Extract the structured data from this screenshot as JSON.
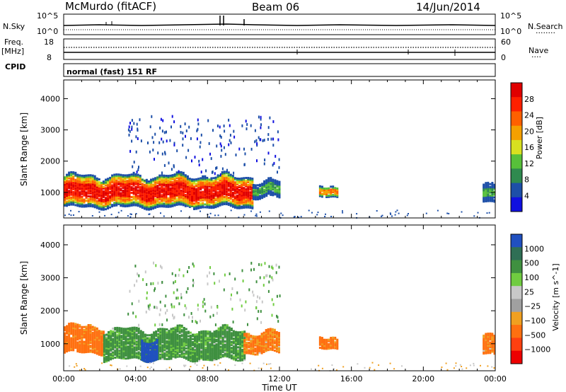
{
  "header": {
    "station": "McMurdo (fitACF)",
    "beam": "Beam 06",
    "date": "14/Jun/2014"
  },
  "noise_panel": {
    "left_label": "N.Sky",
    "right_label": "N.Search",
    "right_key": "........",
    "left_ticks": [
      "10^5",
      "10^0"
    ],
    "right_ticks": [
      "10^5",
      "10^0"
    ]
  },
  "freq_panel": {
    "left_label_1": "Freq.",
    "left_label_2": "[MHz]",
    "left_ticks": [
      "18",
      "8"
    ],
    "right_label": "Nave",
    "right_key": "....",
    "right_ticks": [
      "60",
      "0"
    ]
  },
  "cpid": {
    "label": "CPID",
    "mode": "normal (fast) 151 RF"
  },
  "colors": {
    "power": [
      "#1010e0",
      "#1d4fa8",
      "#2f8a4f",
      "#57c03a",
      "#d8e020",
      "#f5a000",
      "#ff6000",
      "#ff2000",
      "#e00000"
    ],
    "velocity": [
      "#2050c0",
      "#2f6f55",
      "#3f9040",
      "#70cc40",
      "#c8c8c8",
      "#a0a0a0",
      "#f0a020",
      "#ff7010",
      "#ff4010",
      "#ee0000"
    ]
  },
  "chart_data": [
    {
      "type": "heatmap",
      "title": "Power",
      "xlabel": "",
      "ylabel": "Slant Range [km]",
      "x_ticks": [
        "00:00",
        "04:00",
        "08:00",
        "12:00",
        "16:00",
        "20:00",
        "00:00"
      ],
      "y_ticks": [
        "1000",
        "2000",
        "3000",
        "4000"
      ],
      "ylim": [
        180,
        4600
      ],
      "colorbar": {
        "label": "Power [dB]",
        "ticks": [
          "4",
          "8",
          "12",
          "16",
          "20",
          "24",
          "28"
        ],
        "range": [
          0,
          32
        ]
      },
      "regions": [
        {
          "t0": 0.0,
          "t1": 10.5,
          "r_low": 500,
          "r_high": 1500,
          "level": "strong"
        },
        {
          "t0": 10.5,
          "t1": 12.0,
          "r_low": 800,
          "r_high": 1300,
          "level": "weak"
        },
        {
          "t0": 14.2,
          "t1": 15.2,
          "r_low": 800,
          "r_high": 1100,
          "level": "medium"
        },
        {
          "t0": 23.3,
          "t1": 24.0,
          "r_low": 700,
          "r_high": 1300,
          "level": "weak"
        }
      ]
    },
    {
      "type": "heatmap",
      "title": "Velocity",
      "xlabel": "Time UT",
      "ylabel": "Slant Range [km]",
      "x_ticks": [
        "00:00",
        "04:00",
        "08:00",
        "12:00",
        "16:00",
        "20:00",
        "00:00"
      ],
      "y_ticks": [
        "1000",
        "2000",
        "3000",
        "4000"
      ],
      "ylim": [
        180,
        4600
      ],
      "colorbar": {
        "label": "Velocity [m s^-1]",
        "ticks": [
          "1000",
          "500",
          "100",
          "25",
          "−25",
          "−100",
          "−500",
          "−1000"
        ],
        "range": [
          -1000,
          1000
        ]
      },
      "regions": [
        {
          "t0": 0.0,
          "t1": 2.2,
          "r_low": 700,
          "r_high": 1500,
          "velocity": -200
        },
        {
          "t0": 2.2,
          "t1": 10.0,
          "r_low": 500,
          "r_high": 1400,
          "velocity": 150
        },
        {
          "t0": 4.3,
          "t1": 5.2,
          "r_low": 500,
          "r_high": 1100,
          "velocity": 900
        },
        {
          "t0": 10.0,
          "t1": 12.0,
          "r_low": 700,
          "r_high": 1300,
          "velocity": -150
        },
        {
          "t0": 14.2,
          "t1": 15.2,
          "r_low": 800,
          "r_high": 1100,
          "velocity": -200
        },
        {
          "t0": 23.3,
          "t1": 24.0,
          "r_low": 700,
          "r_high": 1300,
          "velocity": -150
        }
      ]
    }
  ]
}
